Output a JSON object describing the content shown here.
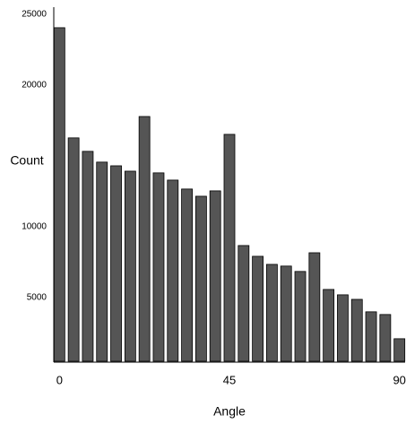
{
  "chart_data": {
    "type": "bar",
    "x_label": "Angle",
    "y_label": "Count",
    "x": [
      0,
      3.75,
      7.5,
      11.25,
      15,
      18.75,
      22.5,
      26.25,
      30,
      33.75,
      37.5,
      41.25,
      45,
      48.75,
      52.5,
      56.25,
      60,
      63.75,
      67.5,
      71.25,
      75,
      78.75,
      82.5,
      86.25,
      90
    ],
    "values": [
      24050,
      16270,
      15320,
      14560,
      14300,
      13920,
      17780,
      13800,
      13290,
      12660,
      12150,
      12530,
      16520,
      8670,
      7910,
      7340,
      7220,
      6840,
      8160,
      5570,
      5190,
      4870,
      3990,
      3800,
      2090
    ],
    "color": "#555555",
    "xlim": [
      -1.5,
      91.5
    ],
    "xticks": [
      0,
      45,
      90
    ],
    "ylim": [
      500,
      25500
    ],
    "yticks": [
      5000,
      10000,
      20000,
      25000
    ]
  }
}
